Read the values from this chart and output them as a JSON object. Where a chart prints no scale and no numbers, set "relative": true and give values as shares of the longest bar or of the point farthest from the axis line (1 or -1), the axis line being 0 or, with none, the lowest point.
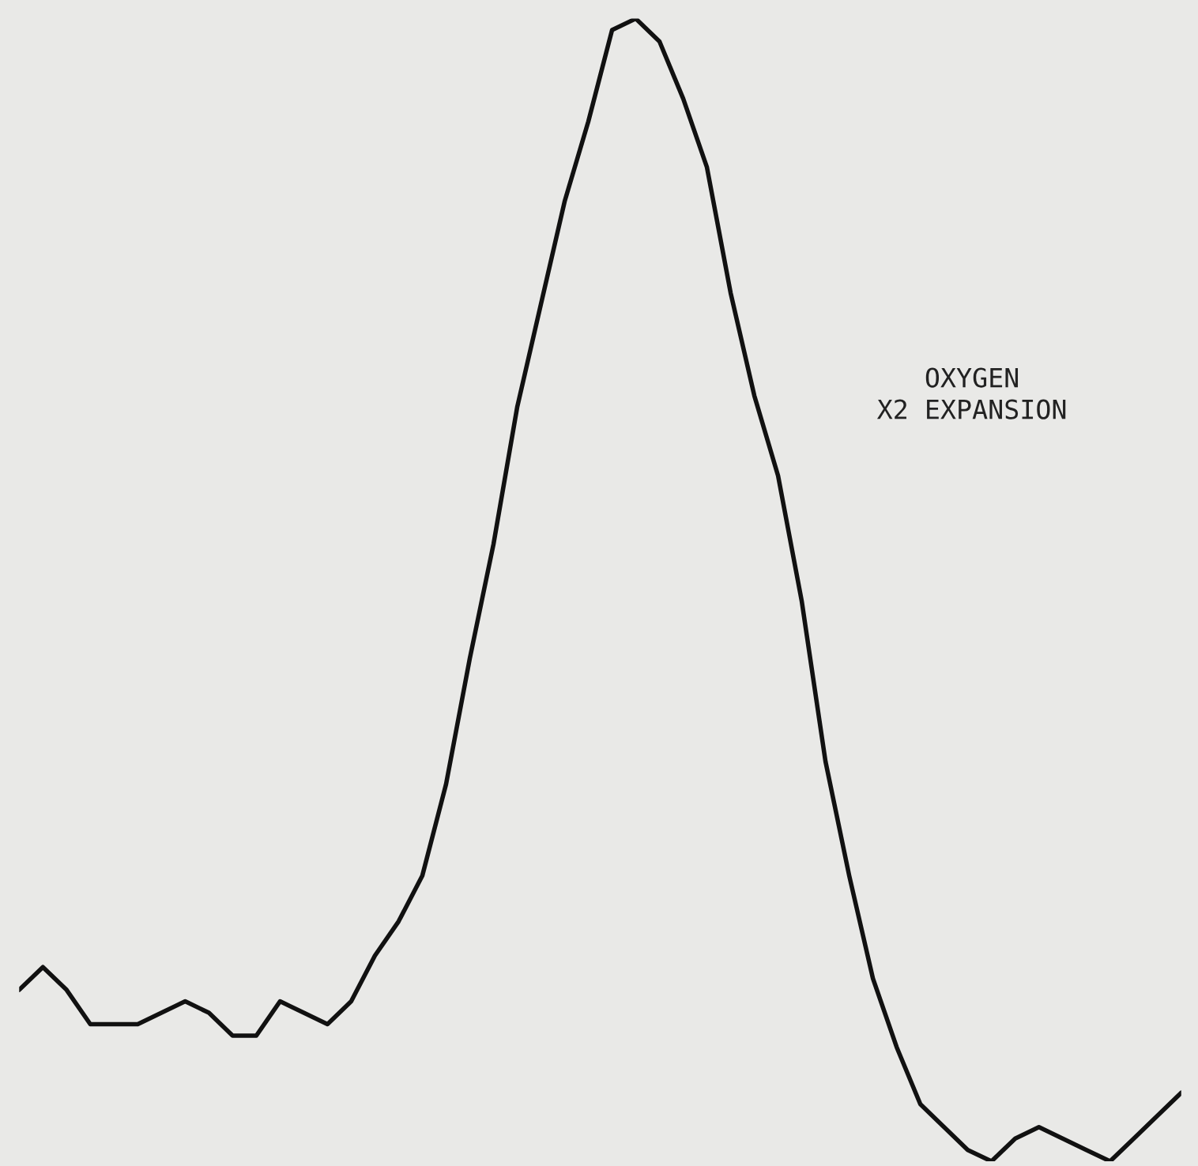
{
  "chart_data": {
    "type": "line",
    "relative": true,
    "categories": [
      null,
      null,
      null,
      null,
      null,
      null,
      null,
      null,
      null,
      null,
      null,
      null,
      null,
      null,
      null,
      null,
      null,
      null,
      null,
      null,
      null,
      null,
      null,
      null,
      null,
      null,
      null,
      null,
      null,
      null,
      null,
      null,
      null,
      null,
      null,
      null,
      null,
      null,
      null,
      null,
      null,
      null,
      null,
      null,
      null,
      null,
      null,
      null,
      null,
      null
    ],
    "series": [
      {
        "color": "#111111",
        "values": [
          0.15,
          0.17,
          0.15,
          0.12,
          0.12,
          0.12,
          0.13,
          0.14,
          0.13,
          0.11,
          0.11,
          0.14,
          0.13,
          0.12,
          0.14,
          0.18,
          0.21,
          0.25,
          0.33,
          0.44,
          0.54,
          0.66,
          0.75,
          0.84,
          0.91,
          0.99,
          1,
          0.98,
          0.93,
          0.87,
          0.76,
          0.67,
          0.6,
          0.49,
          0.35,
          0.25,
          0.16,
          0.1,
          0.05,
          0.03,
          0.01,
          0,
          0.02,
          0.03,
          0.02,
          0.01,
          0.0,
          0.02,
          0.04,
          0.06
        ]
      }
    ],
    "annotations": [
      "OXYGEN\nX2 EXPANSION"
    ]
  }
}
